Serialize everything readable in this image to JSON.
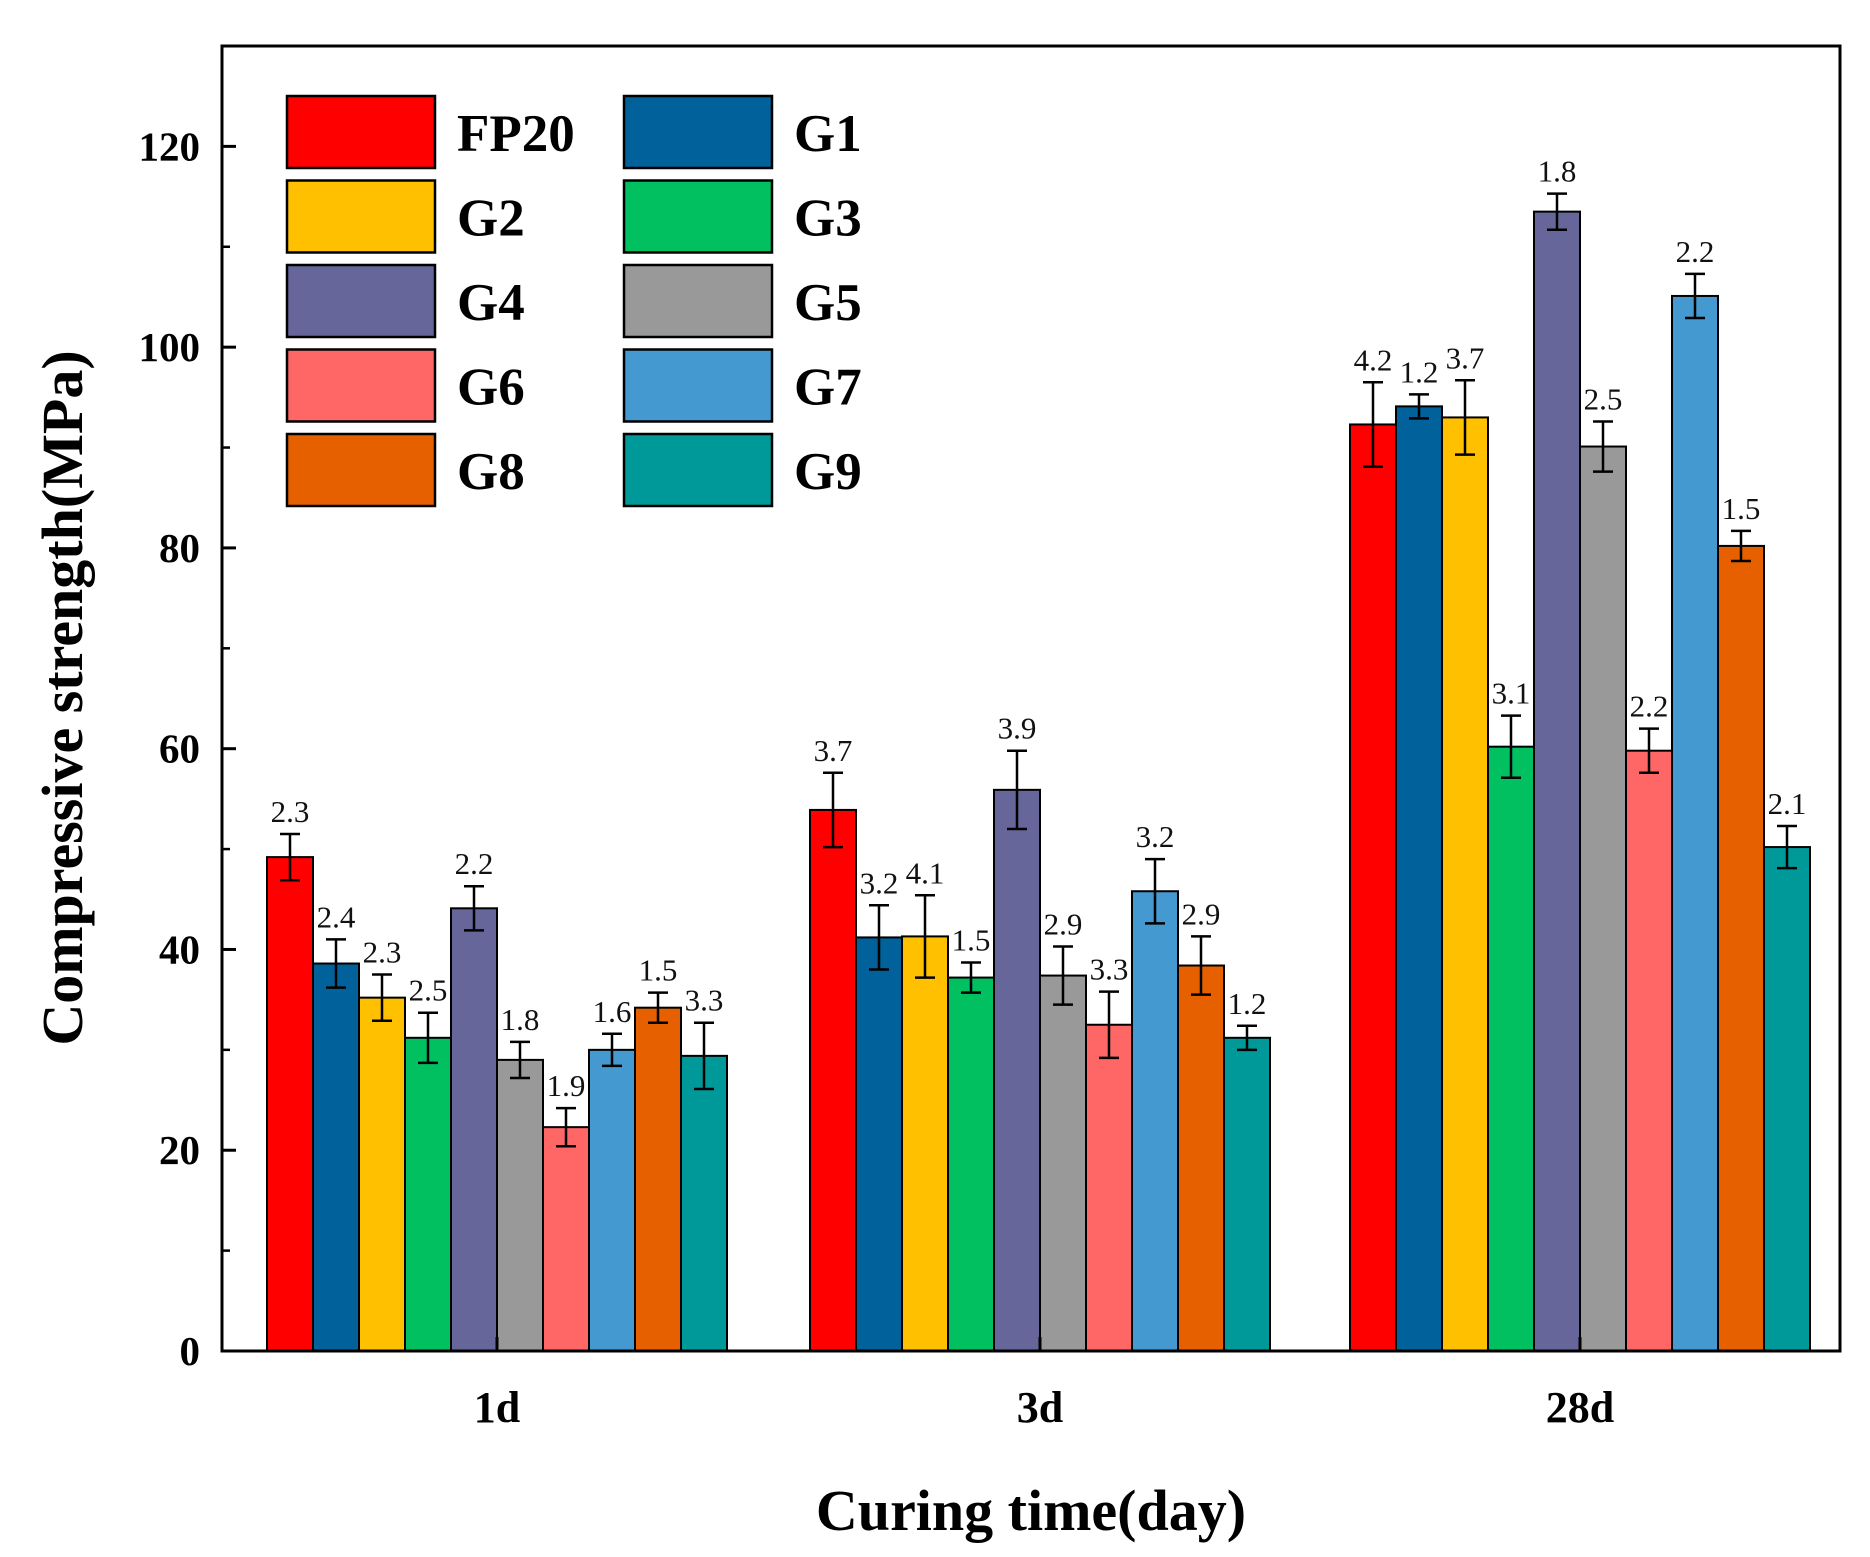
{
  "chart_data": {
    "type": "bar",
    "title": "",
    "xlabel": "Curing time(day)",
    "ylabel": "Compressive strength(MPa)",
    "ylim": [
      0,
      130
    ],
    "yticks": [
      0,
      20,
      40,
      60,
      80,
      100,
      120
    ],
    "categories": [
      "1d",
      "3d",
      "28d"
    ],
    "legend_position": "top-left",
    "series": [
      {
        "name": "FP20",
        "color": "#FF0000",
        "values": [
          49.2,
          53.9,
          92.3
        ],
        "errors": [
          2.3,
          3.7,
          4.2
        ],
        "error_labels": [
          "2.3",
          "3.7",
          "4.2"
        ]
      },
      {
        "name": "G1",
        "color": "#00619B",
        "values": [
          38.6,
          41.2,
          94.1
        ],
        "errors": [
          2.4,
          3.2,
          1.2
        ],
        "error_labels": [
          "2.4",
          "3.2",
          "1.2"
        ]
      },
      {
        "name": "G2",
        "color": "#FFC000",
        "values": [
          35.2,
          41.3,
          93.0
        ],
        "errors": [
          2.3,
          4.1,
          3.7
        ],
        "error_labels": [
          "2.3",
          "4.1",
          "3.7"
        ]
      },
      {
        "name": "G3",
        "color": "#00C060",
        "values": [
          31.2,
          37.2,
          60.2
        ],
        "errors": [
          2.5,
          1.5,
          3.1
        ],
        "error_labels": [
          "2.5",
          "1.5",
          "3.1"
        ]
      },
      {
        "name": "G4",
        "color": "#66669A",
        "values": [
          44.1,
          55.9,
          113.5
        ],
        "errors": [
          2.2,
          3.9,
          1.8
        ],
        "error_labels": [
          "2.2",
          "3.9",
          "1.8"
        ]
      },
      {
        "name": "G5",
        "color": "#999999",
        "values": [
          29.0,
          37.4,
          90.1
        ],
        "errors": [
          1.8,
          2.9,
          2.5
        ],
        "error_labels": [
          "1.8",
          "2.9",
          "2.5"
        ]
      },
      {
        "name": "G6",
        "color": "#FF6666",
        "values": [
          22.3,
          32.5,
          59.8
        ],
        "errors": [
          1.9,
          3.3,
          2.2
        ],
        "error_labels": [
          "1.9",
          "3.3",
          "2.2"
        ]
      },
      {
        "name": "G7",
        "color": "#4399D0",
        "values": [
          30.0,
          45.8,
          105.1
        ],
        "errors": [
          1.6,
          3.2,
          2.2
        ],
        "error_labels": [
          "1.6",
          "3.2",
          "2.2"
        ]
      },
      {
        "name": "G8",
        "color": "#E66000",
        "values": [
          34.2,
          38.4,
          80.2
        ],
        "errors": [
          1.5,
          2.9,
          1.5
        ],
        "error_labels": [
          "1.5",
          "2.9",
          "1.5"
        ]
      },
      {
        "name": "G9",
        "color": "#009999",
        "values": [
          29.4,
          31.2,
          50.2
        ],
        "errors": [
          3.3,
          1.2,
          2.1
        ],
        "error_labels": [
          "3.3",
          "1.2",
          "2.1"
        ]
      }
    ]
  }
}
